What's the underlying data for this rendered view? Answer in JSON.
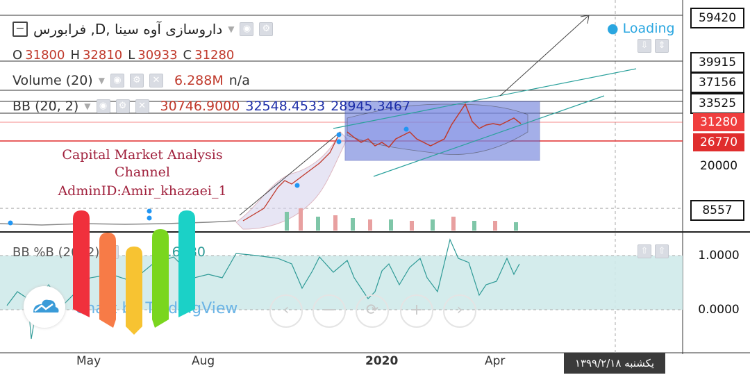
{
  "symbol": {
    "name": "داروسازی آوه سینا ,D, فرابورس",
    "ohlc": {
      "o_label": "O",
      "o": "31800",
      "h_label": "H",
      "h": "32810",
      "l_label": "L",
      "l": "30933",
      "c_label": "C",
      "c": "31280"
    }
  },
  "status": {
    "loading": "Loading"
  },
  "volume": {
    "label": "Volume (20)",
    "value": "6.288M",
    "extra": "n/a"
  },
  "bb": {
    "label": "BB (20, 2)",
    "v1": "30746.9000",
    "v2": "32548.4533",
    "v3": "28945.3467"
  },
  "bbpct": {
    "label": "BB %B (20, 2)",
    "value": "0.6480"
  },
  "price_axis": {
    "labels": [
      "59420",
      "39915",
      "37156",
      "33525",
      "31280",
      "26770",
      "20000",
      "8557"
    ],
    "current": "31280",
    "support": "26770"
  },
  "pct_axis": {
    "labels": [
      "1.0000",
      "0.0000"
    ]
  },
  "time_axis": {
    "labels": [
      "May",
      "Aug",
      "2020",
      "Apr"
    ],
    "date_badge": "یکشنبه ۱۳۹۹/۲/۱۸"
  },
  "watermark": {
    "line1": "Capital Market Analysis",
    "line2": "Channel",
    "line3": "AdminID:Amir_khazaei_1"
  },
  "branding": {
    "text": "Chart by TradingView"
  },
  "nav": {
    "zoom_out": "−",
    "reset": "⟳",
    "zoom_in": "+",
    "back": "‹",
    "forward": "›"
  },
  "colors": {
    "current_price": "#f03e3e",
    "support": "#e02d2d",
    "bb_box": "#5b6fd6",
    "bbpct_fill": "#cfeaea",
    "bbpct_line": "#2e9a96",
    "trend": "#2aa19c",
    "arrow": "#444444"
  },
  "logo_bars": [
    {
      "color": "#f0303c"
    },
    {
      "color": "#f77b47"
    },
    {
      "color": "#f7c332"
    },
    {
      "color": "#7ad61e"
    },
    {
      "color": "#1bd1c7"
    }
  ]
}
